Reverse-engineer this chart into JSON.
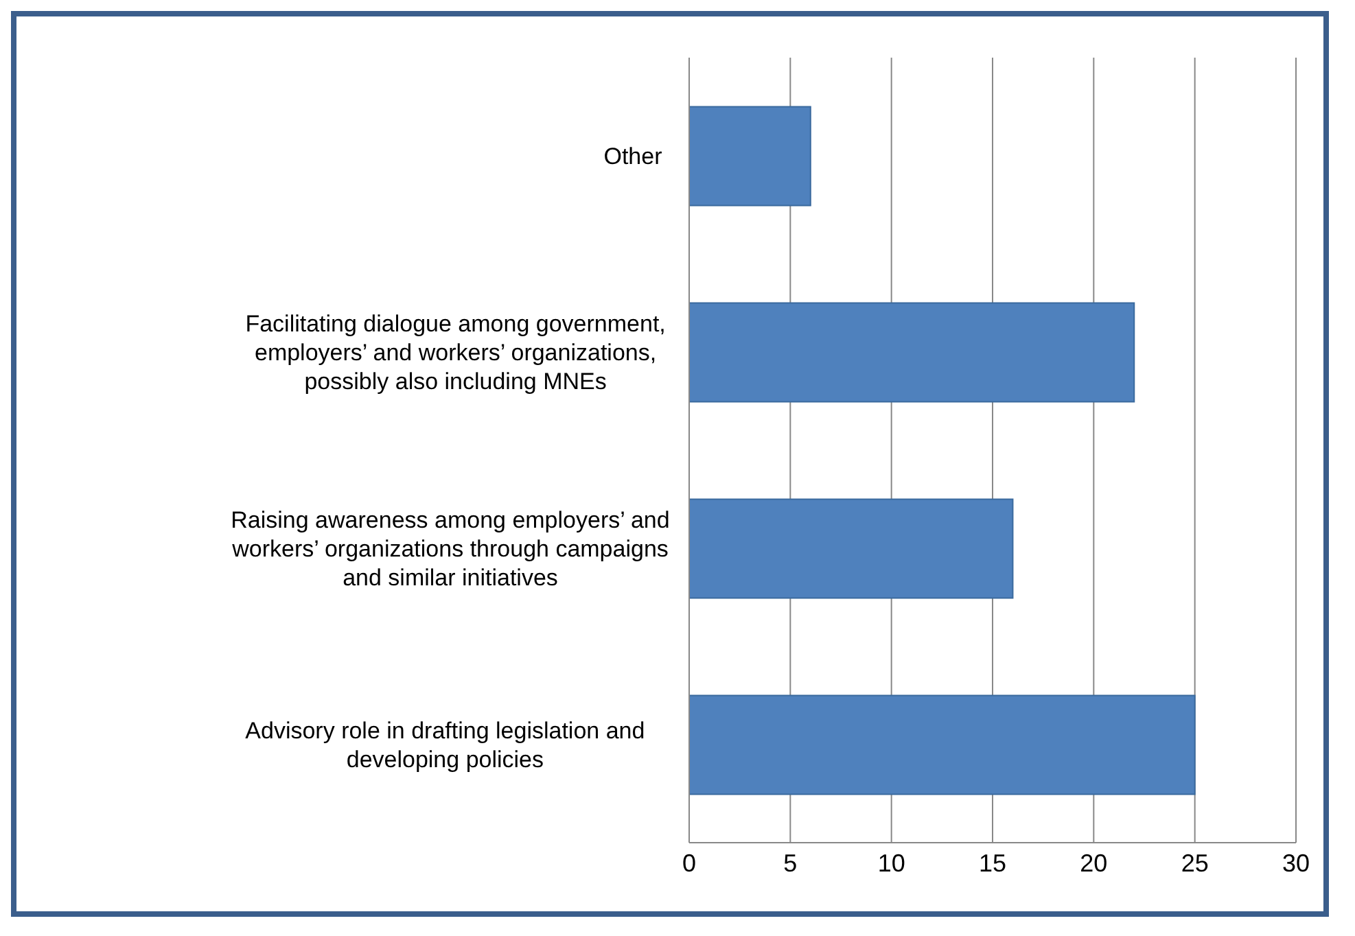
{
  "chart_data": {
    "type": "bar",
    "orientation": "horizontal",
    "categories": [
      "Other",
      "Facilitating dialogue among government, employers’ and workers’ organizations, possibly also including MNEs",
      "Raising awareness among employers’ and workers’ organizations through campaigns and similar initiatives",
      "Advisory role in drafting legislation and developing policies"
    ],
    "values": [
      6,
      22,
      16,
      25
    ],
    "color": "#4f81bd",
    "xlim": [
      0,
      30
    ],
    "xticks": [
      0,
      5,
      10,
      15,
      20,
      25,
      30
    ],
    "grid": "x",
    "legend": false
  }
}
